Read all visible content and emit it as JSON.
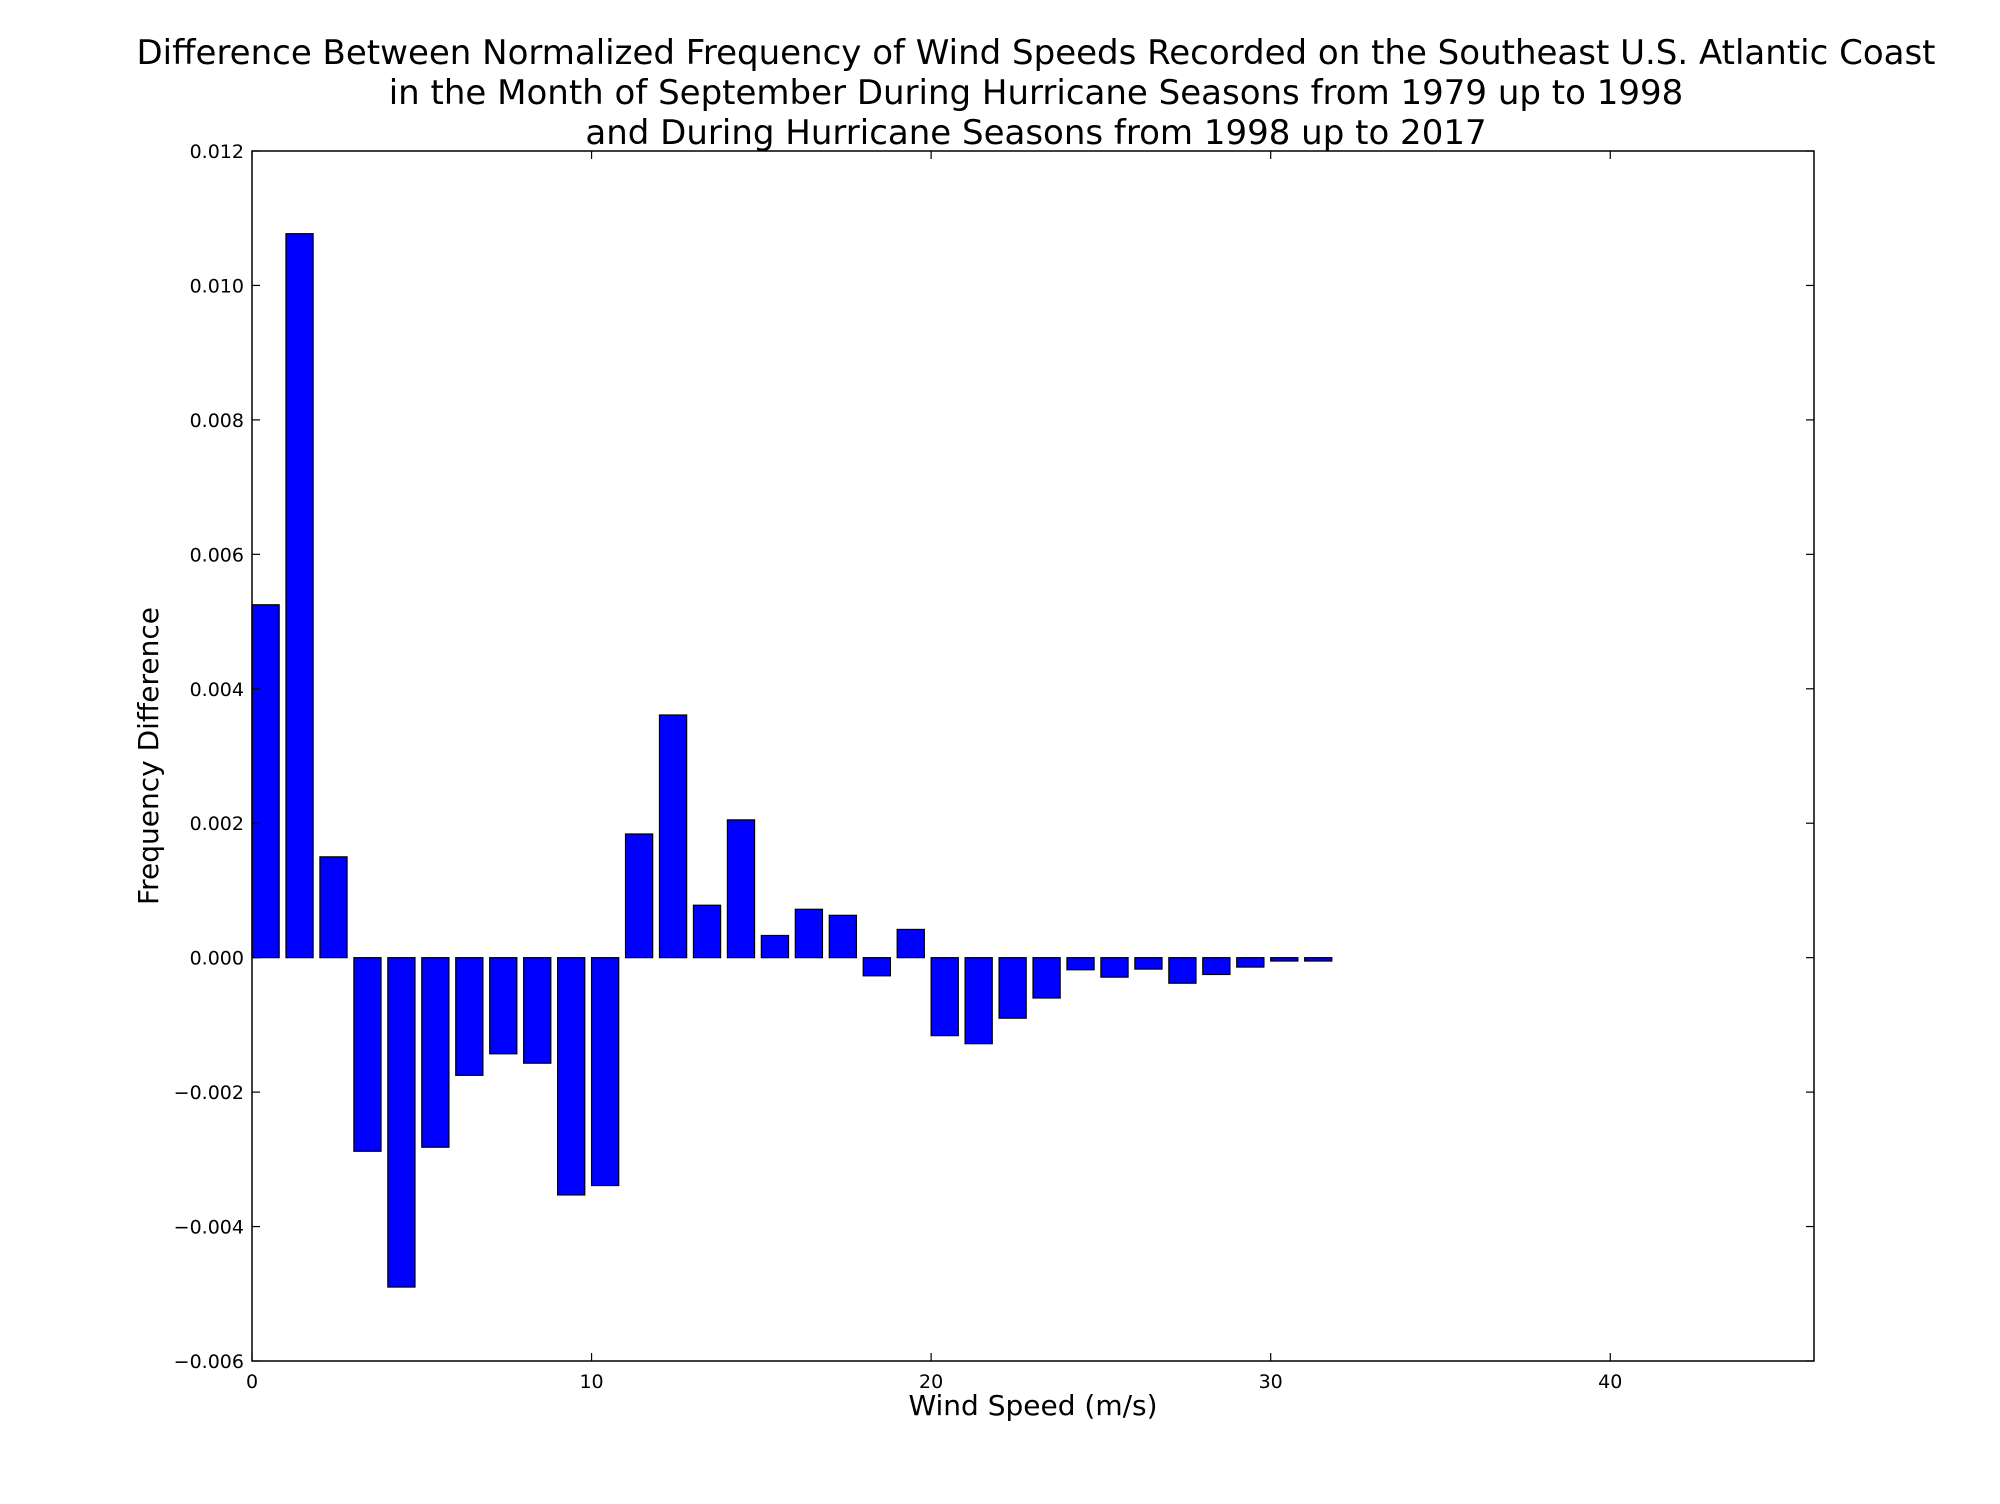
{
  "chart_data": {
    "type": "bar",
    "title": [
      "Difference Between Normalized Frequency of Wind Speeds Recorded on the Southeast U.S. Atlantic Coast",
      "in the Month of September During Hurricane Seasons from 1979 up to 1998",
      "and During Hurricane Seasons from 1998 up to 2017"
    ],
    "xlabel": "Wind Speed (m/s)",
    "ylabel": "Frequency Difference",
    "xlim": [
      0,
      46
    ],
    "ylim": [
      -0.006,
      0.012
    ],
    "xticks": [
      0,
      10,
      20,
      30,
      40
    ],
    "xtick_labels": [
      "0",
      "10",
      "20",
      "30",
      "40"
    ],
    "yticks": [
      -0.006,
      -0.004,
      -0.002,
      0.0,
      0.002,
      0.004,
      0.006,
      0.008,
      0.01,
      0.012
    ],
    "ytick_labels": [
      "−0.006",
      "−0.004",
      "−0.002",
      "0.000",
      "0.002",
      "0.004",
      "0.006",
      "0.008",
      "0.010",
      "0.012"
    ],
    "grid": false,
    "bar_width": 0.8,
    "bar_color": "#0000ff",
    "edge_color": "#000000",
    "x": [
      0,
      1,
      2,
      3,
      4,
      5,
      6,
      7,
      8,
      9,
      10,
      11,
      12,
      13,
      14,
      15,
      16,
      17,
      18,
      19,
      20,
      21,
      22,
      23,
      24,
      25,
      26,
      27,
      28,
      29,
      30,
      31,
      32,
      33,
      34,
      35,
      36,
      37,
      38,
      39,
      40,
      41,
      42,
      43,
      44
    ],
    "values": [
      0.00525,
      0.01077,
      0.0015,
      -0.00288,
      -0.0049,
      -0.00282,
      -0.00175,
      -0.00143,
      -0.00157,
      -0.00353,
      -0.00339,
      0.00184,
      0.00361,
      0.00078,
      0.00205,
      0.00033,
      0.00072,
      0.00063,
      -0.00027,
      0.00042,
      -0.00116,
      -0.00128,
      -0.0009,
      -0.0006,
      -0.00018,
      -0.00029,
      -0.00017,
      -0.00038,
      -0.00025,
      -0.00014,
      -5e-05,
      -5e-05,
      0.0,
      0.0,
      0.0,
      0.0,
      0.0,
      0.0,
      0.0,
      0.0,
      0.0,
      0.0,
      0.0,
      0.0,
      0.0
    ]
  }
}
